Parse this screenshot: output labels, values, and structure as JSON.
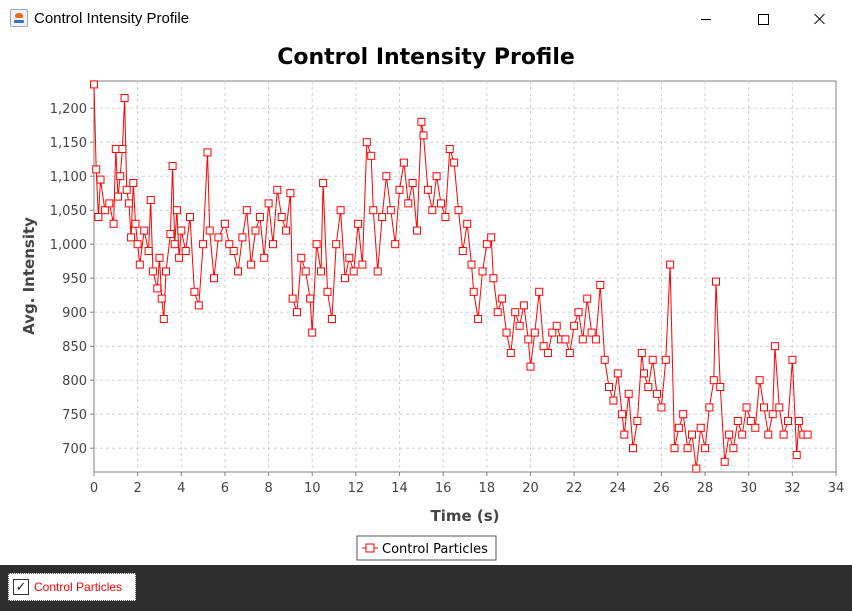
{
  "window": {
    "title": "Control Intensity Profile",
    "icon": "java-cup-icon",
    "controls": [
      "minimize-icon",
      "maximize-icon",
      "close-icon"
    ]
  },
  "chart_data": {
    "type": "line",
    "title": "Control Intensity Profile",
    "xlabel": "Time (s)",
    "ylabel": "Avg. Intensity",
    "xlim": [
      0,
      34
    ],
    "ylim": [
      665,
      1240
    ],
    "x_ticks": [
      0,
      2,
      4,
      6,
      8,
      10,
      12,
      14,
      16,
      18,
      20,
      22,
      24,
      26,
      28,
      30,
      32,
      34
    ],
    "y_ticks": [
      700,
      750,
      800,
      850,
      900,
      950,
      1000,
      1050,
      1100,
      1150,
      1200
    ],
    "y_tick_labels": [
      "700",
      "750",
      "800",
      "850",
      "900",
      "950",
      "1,000",
      "1,050",
      "1,100",
      "1,150",
      "1,200"
    ],
    "grid": true,
    "legend_position": "bottom-center",
    "marker": "square",
    "series": [
      {
        "name": "Control Particles",
        "color": "#ff0000",
        "points": [
          [
            0.0,
            1235
          ],
          [
            0.1,
            1110
          ],
          [
            0.2,
            1040
          ],
          [
            0.3,
            1095
          ],
          [
            0.5,
            1050
          ],
          [
            0.7,
            1060
          ],
          [
            0.9,
            1030
          ],
          [
            1.0,
            1140
          ],
          [
            1.1,
            1070
          ],
          [
            1.2,
            1100
          ],
          [
            1.3,
            1140
          ],
          [
            1.4,
            1215
          ],
          [
            1.5,
            1080
          ],
          [
            1.6,
            1060
          ],
          [
            1.7,
            1010
          ],
          [
            1.8,
            1090
          ],
          [
            1.9,
            1030
          ],
          [
            2.0,
            1000
          ],
          [
            2.1,
            970
          ],
          [
            2.3,
            1020
          ],
          [
            2.5,
            990
          ],
          [
            2.6,
            1065
          ],
          [
            2.7,
            960
          ],
          [
            2.9,
            935
          ],
          [
            3.0,
            980
          ],
          [
            3.1,
            920
          ],
          [
            3.2,
            890
          ],
          [
            3.3,
            960
          ],
          [
            3.5,
            1015
          ],
          [
            3.6,
            1115
          ],
          [
            3.7,
            1000
          ],
          [
            3.8,
            1050
          ],
          [
            3.9,
            980
          ],
          [
            4.0,
            1020
          ],
          [
            4.2,
            990
          ],
          [
            4.4,
            1040
          ],
          [
            4.6,
            930
          ],
          [
            4.8,
            910
          ],
          [
            5.0,
            1000
          ],
          [
            5.2,
            1135
          ],
          [
            5.3,
            1020
          ],
          [
            5.5,
            950
          ],
          [
            5.7,
            1010
          ],
          [
            6.0,
            1030
          ],
          [
            6.2,
            1000
          ],
          [
            6.4,
            990
          ],
          [
            6.6,
            960
          ],
          [
            6.8,
            1010
          ],
          [
            7.0,
            1050
          ],
          [
            7.2,
            970
          ],
          [
            7.4,
            1020
          ],
          [
            7.6,
            1040
          ],
          [
            7.8,
            980
          ],
          [
            8.0,
            1060
          ],
          [
            8.2,
            1000
          ],
          [
            8.4,
            1080
          ],
          [
            8.6,
            1040
          ],
          [
            8.8,
            1020
          ],
          [
            9.0,
            1075
          ],
          [
            9.1,
            920
          ],
          [
            9.3,
            900
          ],
          [
            9.5,
            980
          ],
          [
            9.7,
            960
          ],
          [
            9.9,
            920
          ],
          [
            10.0,
            870
          ],
          [
            10.2,
            1000
          ],
          [
            10.4,
            960
          ],
          [
            10.5,
            1090
          ],
          [
            10.7,
            930
          ],
          [
            10.9,
            890
          ],
          [
            11.1,
            1000
          ],
          [
            11.3,
            1050
          ],
          [
            11.5,
            950
          ],
          [
            11.7,
            980
          ],
          [
            11.9,
            960
          ],
          [
            12.1,
            1030
          ],
          [
            12.3,
            970
          ],
          [
            12.5,
            1150
          ],
          [
            12.7,
            1130
          ],
          [
            12.8,
            1050
          ],
          [
            13.0,
            960
          ],
          [
            13.2,
            1040
          ],
          [
            13.4,
            1100
          ],
          [
            13.6,
            1050
          ],
          [
            13.8,
            1000
          ],
          [
            14.0,
            1080
          ],
          [
            14.2,
            1120
          ],
          [
            14.4,
            1060
          ],
          [
            14.6,
            1090
          ],
          [
            14.8,
            1020
          ],
          [
            15.0,
            1180
          ],
          [
            15.1,
            1160
          ],
          [
            15.3,
            1080
          ],
          [
            15.5,
            1050
          ],
          [
            15.7,
            1100
          ],
          [
            15.9,
            1060
          ],
          [
            16.1,
            1040
          ],
          [
            16.3,
            1140
          ],
          [
            16.5,
            1120
          ],
          [
            16.7,
            1050
          ],
          [
            16.9,
            990
          ],
          [
            17.1,
            1030
          ],
          [
            17.3,
            970
          ],
          [
            17.4,
            930
          ],
          [
            17.6,
            890
          ],
          [
            17.8,
            960
          ],
          [
            18.0,
            1000
          ],
          [
            18.2,
            1010
          ],
          [
            18.3,
            950
          ],
          [
            18.5,
            900
          ],
          [
            18.7,
            920
          ],
          [
            18.9,
            870
          ],
          [
            19.1,
            840
          ],
          [
            19.3,
            900
          ],
          [
            19.5,
            880
          ],
          [
            19.7,
            910
          ],
          [
            19.9,
            860
          ],
          [
            20.0,
            820
          ],
          [
            20.2,
            870
          ],
          [
            20.4,
            930
          ],
          [
            20.6,
            850
          ],
          [
            20.8,
            840
          ],
          [
            21.0,
            870
          ],
          [
            21.2,
            880
          ],
          [
            21.4,
            860
          ],
          [
            21.6,
            860
          ],
          [
            21.8,
            840
          ],
          [
            22.0,
            880
          ],
          [
            22.2,
            900
          ],
          [
            22.4,
            860
          ],
          [
            22.6,
            920
          ],
          [
            22.8,
            870
          ],
          [
            23.0,
            860
          ],
          [
            23.2,
            940
          ],
          [
            23.4,
            830
          ],
          [
            23.6,
            790
          ],
          [
            23.8,
            770
          ],
          [
            24.0,
            810
          ],
          [
            24.2,
            750
          ],
          [
            24.3,
            720
          ],
          [
            24.5,
            780
          ],
          [
            24.7,
            700
          ],
          [
            24.9,
            740
          ],
          [
            25.1,
            840
          ],
          [
            25.2,
            810
          ],
          [
            25.4,
            790
          ],
          [
            25.6,
            830
          ],
          [
            25.8,
            780
          ],
          [
            26.0,
            760
          ],
          [
            26.2,
            830
          ],
          [
            26.4,
            970
          ],
          [
            26.6,
            700
          ],
          [
            26.8,
            730
          ],
          [
            27.0,
            750
          ],
          [
            27.2,
            700
          ],
          [
            27.4,
            720
          ],
          [
            27.6,
            670
          ],
          [
            27.8,
            730
          ],
          [
            28.0,
            700
          ],
          [
            28.2,
            760
          ],
          [
            28.4,
            800
          ],
          [
            28.5,
            945
          ],
          [
            28.7,
            790
          ],
          [
            28.9,
            680
          ],
          [
            29.1,
            720
          ],
          [
            29.3,
            700
          ],
          [
            29.5,
            740
          ],
          [
            29.7,
            720
          ],
          [
            29.9,
            760
          ],
          [
            30.1,
            740
          ],
          [
            30.3,
            730
          ],
          [
            30.5,
            800
          ],
          [
            30.7,
            760
          ],
          [
            30.9,
            720
          ],
          [
            31.1,
            750
          ],
          [
            31.2,
            850
          ],
          [
            31.4,
            760
          ],
          [
            31.6,
            720
          ],
          [
            31.8,
            740
          ],
          [
            32.0,
            830
          ],
          [
            32.2,
            690
          ],
          [
            32.3,
            740
          ],
          [
            32.5,
            720
          ],
          [
            32.7,
            720
          ]
        ]
      }
    ]
  },
  "legend": {
    "label": "Control Particles",
    "icon": "square-marker-icon"
  },
  "controls": {
    "series_checkbox_label": "Control Particles",
    "series_checkbox_checked": true,
    "checkbox_icon": "check-icon"
  }
}
